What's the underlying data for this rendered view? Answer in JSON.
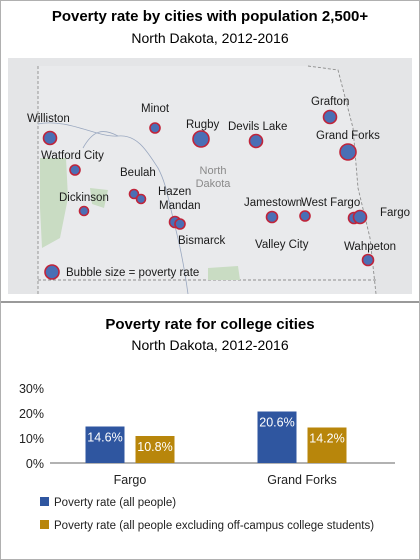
{
  "map_panel": {
    "title": "Poverty rate by cities with population 2,500+",
    "subtitle": "North Dakota, 2012-2016",
    "state_label_line1": "North",
    "state_label_line2": "Dakota",
    "bubble_legend": "Bubble size = poverty rate",
    "colors": {
      "bubble_fill": "#4a6fb5",
      "bubble_stroke": "#c0243a",
      "map_bg": "#e4e5e7",
      "state_fill": "#e9eaec",
      "border_line": "#8e8e8e",
      "green_area": "#c9dcc3"
    },
    "cities": [
      {
        "name": "Williston"
      },
      {
        "name": "Watford City"
      },
      {
        "name": "Minot"
      },
      {
        "name": "Rugby"
      },
      {
        "name": "Devils Lake"
      },
      {
        "name": "Grafton"
      },
      {
        "name": "Grand Forks"
      },
      {
        "name": "Beulah"
      },
      {
        "name": "Hazen"
      },
      {
        "name": "Dickinson"
      },
      {
        "name": "Mandan"
      },
      {
        "name": "Bismarck"
      },
      {
        "name": "Jamestown"
      },
      {
        "name": "West Fargo"
      },
      {
        "name": "Fargo"
      },
      {
        "name": "Valley City"
      },
      {
        "name": "Wahpeton"
      }
    ]
  },
  "college_panel": {
    "title": "Poverty rate for college cities",
    "subtitle": "North Dakota, 2012-2016"
  },
  "chart_data": {
    "type": "bar",
    "title": "Poverty rate for college cities",
    "subtitle": "North Dakota, 2012-2016",
    "categories": [
      "Fargo",
      "Grand Forks"
    ],
    "series": [
      {
        "name": "Poverty rate (all people)",
        "values": [
          14.6,
          20.6
        ],
        "labels": [
          "14.6%",
          "20.6%"
        ],
        "color": "#2f56a0"
      },
      {
        "name": "Poverty rate (all people excluding off-campus college students)",
        "values": [
          10.8,
          14.2
        ],
        "labels": [
          "10.8%",
          "14.2%"
        ],
        "color": "#b8860b"
      }
    ],
    "yticks": [
      "0%",
      "10%",
      "20%",
      "30%"
    ],
    "ylim": [
      0,
      30
    ],
    "legend_position": "bottom-left",
    "grid": false
  }
}
